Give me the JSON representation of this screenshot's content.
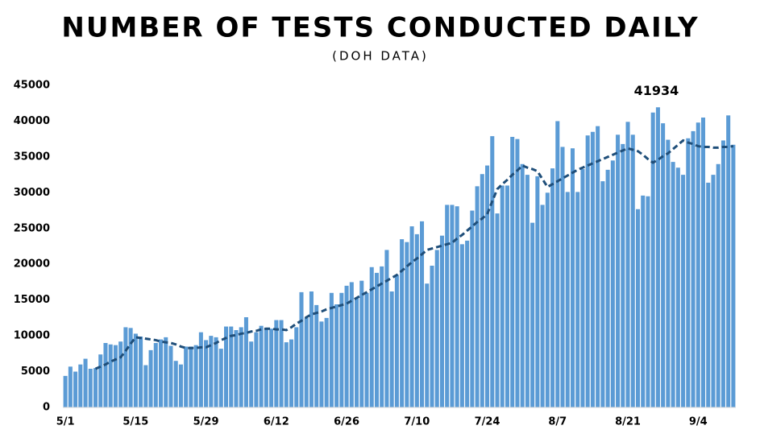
{
  "chart_data": {
    "type": "bar",
    "title": "NUMBER OF TESTS CONDUCTED DAILY",
    "subtitle": "(DOH DATA)",
    "annotation": "41934",
    "categories": [
      "5/1",
      null,
      null,
      null,
      null,
      null,
      null,
      null,
      null,
      null,
      null,
      null,
      null,
      null,
      "5/15",
      null,
      null,
      null,
      null,
      null,
      null,
      null,
      null,
      null,
      null,
      null,
      null,
      null,
      "5/29",
      null,
      null,
      null,
      null,
      null,
      null,
      null,
      null,
      null,
      null,
      null,
      null,
      null,
      "6/12",
      null,
      null,
      null,
      null,
      null,
      null,
      null,
      null,
      null,
      null,
      null,
      null,
      null,
      "6/26",
      null,
      null,
      null,
      null,
      null,
      null,
      null,
      null,
      null,
      null,
      null,
      null,
      null,
      "7/10",
      null,
      null,
      null,
      null,
      null,
      null,
      null,
      null,
      null,
      null,
      null,
      null,
      null,
      "7/24",
      null,
      null,
      null,
      null,
      null,
      null,
      null,
      null,
      null,
      null,
      null,
      null,
      null,
      "8/7",
      null,
      null,
      null,
      null,
      null,
      null,
      null,
      null,
      null,
      null,
      null,
      null,
      null,
      "8/21",
      null,
      null,
      null,
      null,
      null,
      null,
      null,
      null,
      null,
      null,
      null,
      null,
      null,
      "9/4",
      null,
      null,
      null,
      null,
      null,
      null,
      null
    ],
    "series": [
      {
        "type": "bar",
        "color": "#5b9bd5",
        "values": [
          4400,
          5700,
          5000,
          6000,
          6800,
          5400,
          5500,
          7400,
          9000,
          8800,
          8700,
          9200,
          11200,
          11100,
          10300,
          9900,
          5900,
          8000,
          9000,
          9500,
          9800,
          8600,
          6500,
          6000,
          8500,
          8500,
          8700,
          10500,
          9400,
          10000,
          9800,
          8200,
          11300,
          11300,
          10800,
          11200,
          12600,
          9200,
          10500,
          11400,
          11000,
          11000,
          12200,
          12200,
          9100,
          9500,
          11200,
          16100,
          12500,
          16200,
          14300,
          12000,
          12500,
          16000,
          14400,
          16000,
          17000,
          17500,
          15300,
          17700,
          16000,
          19600,
          18800,
          19700,
          22000,
          16200,
          18500,
          23500,
          23100,
          25300,
          24200,
          26000,
          17300,
          19800,
          22000,
          24000,
          28300,
          28300,
          28100,
          22800,
          23300,
          27500,
          30900,
          32600,
          33800,
          37900,
          27100,
          31000,
          31000,
          37800,
          37500,
          34000,
          32500,
          25800,
          32300,
          28300,
          30000,
          33400,
          40000,
          36400,
          30100,
          36200,
          30100,
          33300,
          38000,
          38500,
          39300,
          31600,
          33200,
          34500,
          38100,
          36800,
          39900,
          38100,
          27700,
          29600,
          29500,
          41200,
          41934,
          39700,
          37400,
          34300,
          33500,
          32500,
          37600,
          38600,
          39800,
          40500,
          31400,
          32500,
          34000,
          37300,
          40800,
          36700
        ]
      },
      {
        "type": "line",
        "color": "#1f4e79",
        "dashed": true,
        "values": [
          null,
          null,
          null,
          null,
          null,
          null,
          5400,
          5700,
          6000,
          6400,
          6700,
          7000,
          7900,
          8900,
          9800,
          9700,
          9600,
          9500,
          9400,
          9200,
          9100,
          9000,
          8800,
          8500,
          8300,
          8300,
          8300,
          8400,
          8400,
          8700,
          9000,
          9400,
          9700,
          10000,
          10100,
          10300,
          10400,
          10600,
          10700,
          10900,
          11000,
          11000,
          10900,
          10900,
          10800,
          11200,
          11700,
          12100,
          12600,
          13000,
          13200,
          13400,
          13700,
          13900,
          14100,
          14300,
          14500,
          14900,
          15300,
          15700,
          16100,
          16500,
          16900,
          17300,
          17700,
          18100,
          18500,
          19100,
          19700,
          20300,
          20800,
          21400,
          22000,
          22200,
          22400,
          22600,
          22800,
          23000,
          23600,
          24100,
          24700,
          25300,
          25900,
          26400,
          27000,
          28800,
          30500,
          31200,
          31800,
          32500,
          33100,
          33800,
          33500,
          33300,
          33000,
          31900,
          30800,
          31200,
          31600,
          32000,
          32400,
          32800,
          33200,
          33500,
          33800,
          34100,
          34400,
          34700,
          35000,
          35300,
          35600,
          35900,
          36200,
          36000,
          35800,
          35300,
          34700,
          34200,
          34600,
          35100,
          35500,
          36100,
          36700,
          37300,
          37000,
          36800,
          36500,
          36400,
          36400,
          36300,
          36300,
          36400,
          36400,
          36500
        ]
      }
    ],
    "ylim": [
      0,
      45000
    ],
    "yticks": [
      0,
      5000,
      10000,
      15000,
      20000,
      25000,
      30000,
      35000,
      40000,
      45000
    ],
    "grid": false
  }
}
